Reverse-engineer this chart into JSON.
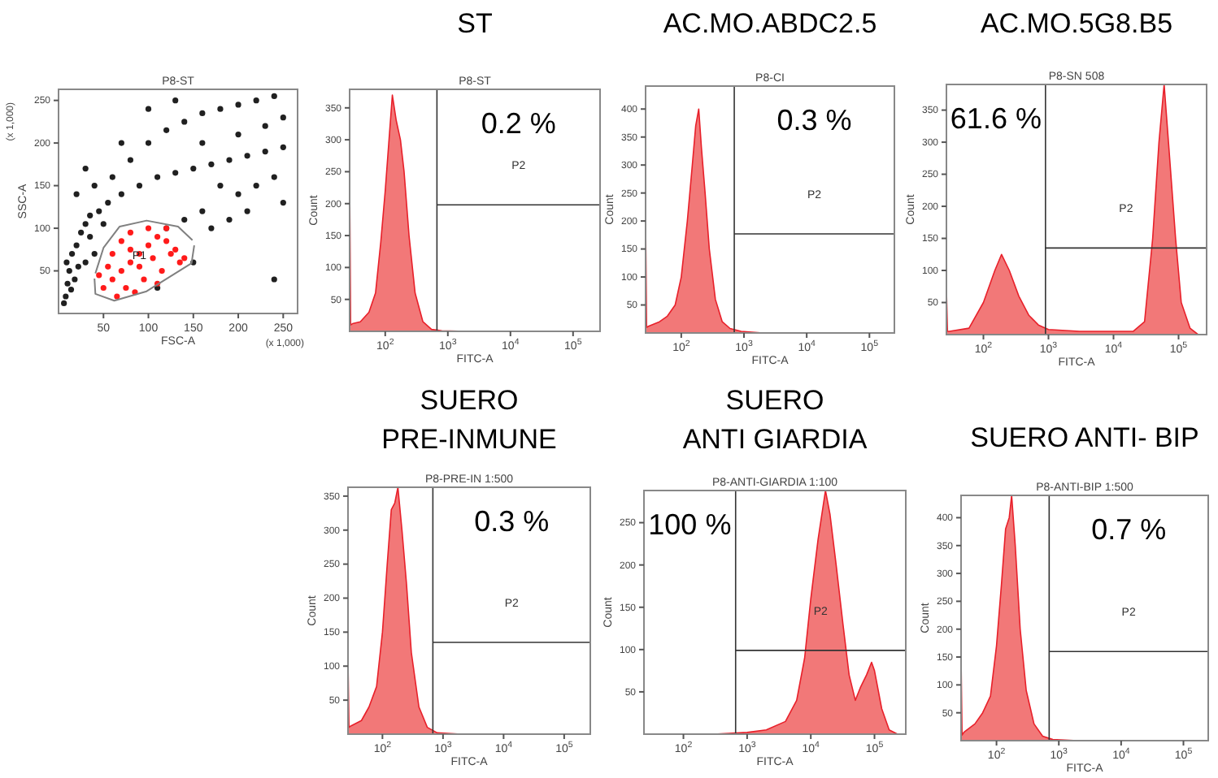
{
  "chart_data": [
    {
      "type": "scatter",
      "subtitle": "P8-ST",
      "xlabel": "FSC-A",
      "ylabel": "SSC-A",
      "xlim": [
        0,
        266
      ],
      "ylim": [
        0,
        263
      ],
      "xticks": [
        50,
        100,
        150,
        200,
        250
      ],
      "yticks": [
        50,
        100,
        150,
        200,
        250
      ],
      "marker": "circle",
      "annotations": [
        "(x 1,000)",
        "(x 1,000)",
        "P1"
      ],
      "series": [
        {
          "color": "#202020",
          "x": [
            8,
            10,
            12,
            9,
            15,
            20,
            25,
            30,
            18,
            22,
            14,
            6,
            35,
            45,
            55,
            70,
            90,
            110,
            130,
            150,
            170,
            190,
            210,
            230,
            250,
            60,
            80,
            100,
            120,
            140,
            160,
            180,
            200,
            220,
            240,
            40,
            70,
            100,
            130,
            160,
            200,
            230,
            250,
            180,
            200,
            220,
            240,
            160,
            140,
            170,
            190,
            210,
            250,
            35,
            30,
            40,
            50,
            120,
            110,
            240,
            150,
            20,
            30
          ],
          "values": [
            20,
            35,
            50,
            60,
            70,
            80,
            95,
            105,
            40,
            55,
            28,
            12,
            115,
            120,
            130,
            140,
            150,
            160,
            165,
            170,
            175,
            180,
            185,
            190,
            195,
            160,
            180,
            200,
            215,
            225,
            235,
            240,
            245,
            250,
            255,
            150,
            200,
            240,
            250,
            200,
            210,
            220,
            230,
            150,
            140,
            150,
            160,
            120,
            110,
            100,
            110,
            120,
            130,
            90,
            60,
            70,
            105,
            100,
            30,
            40,
            60,
            140,
            170
          ]
        },
        {
          "color": "#ff1a1a",
          "x": [
            50,
            60,
            70,
            80,
            90,
            100,
            110,
            120,
            130,
            140,
            60,
            70,
            80,
            100,
            120,
            55,
            75,
            95,
            115,
            135,
            65,
            85,
            90,
            105,
            125,
            45,
            110,
            80
          ],
          "values": [
            30,
            40,
            50,
            60,
            70,
            80,
            90,
            85,
            75,
            65,
            70,
            85,
            95,
            100,
            100,
            55,
            30,
            40,
            50,
            60,
            20,
            25,
            55,
            65,
            70,
            45,
            35,
            75
          ]
        },
        {
          "type": "line",
          "marker": "none",
          "color": "#808080",
          "x": [
            40,
            41,
            62,
            98,
            148,
            151
          ],
          "values": [
            41,
            23,
            15,
            26,
            59,
            80
          ]
        },
        {
          "type": "line",
          "marker": "none",
          "color": "#808080",
          "x": [
            41,
            50,
            68,
            98,
            133,
            149
          ],
          "values": [
            47,
            77,
            102,
            109,
            102,
            86
          ]
        }
      ]
    },
    {
      "type": "area",
      "title": "ST",
      "subtitle": "P8-ST",
      "xlabel": "FITC-A",
      "ylabel": "Count",
      "log": "x",
      "xlim": [
        27,
        270000
      ],
      "ylim": [
        0,
        379
      ],
      "xticks": [
        {
          "value": 100,
          "label": "10$^{2}$"
        },
        {
          "value": 1000,
          "label": "10$^{3}$"
        },
        {
          "value": 10000,
          "label": "10$^{4}$"
        },
        {
          "value": 100000,
          "label": "10$^{5}$"
        }
      ],
      "yticks": [
        50,
        100,
        150,
        200,
        250,
        300,
        350
      ],
      "annotations": [
        "0.2 %"
      ],
      "ref_lines": [
        {
          "axis": "x",
          "value": 670
        },
        {
          "axis": "y",
          "value": 198,
          "label": "P2"
        }
      ],
      "series": [
        {
          "color": "#f06060",
          "x": [
            27,
            28,
            30,
            40,
            55,
            70,
            85,
            100,
            115,
            130,
            150,
            175,
            200,
            240,
            300,
            400,
            550,
            800,
            2000,
            100000
          ],
          "values": [
            240,
            10,
            12,
            15,
            30,
            60,
            140,
            220,
            300,
            370,
            330,
            300,
            250,
            150,
            60,
            15,
            3,
            1,
            0,
            0
          ]
        }
      ]
    },
    {
      "type": "area",
      "title": "AC.MO.ABDC2.5",
      "subtitle": "P8-CI",
      "xlabel": "FITC-A",
      "ylabel": "Count",
      "log": "x",
      "xlim": [
        27,
        250000
      ],
      "ylim": [
        0,
        441
      ],
      "xticks": [
        {
          "value": 100,
          "label": "10$^{2}$"
        },
        {
          "value": 1000,
          "label": "10$^{3}$"
        },
        {
          "value": 10000,
          "label": "10$^{4}$"
        },
        {
          "value": 100000,
          "label": "10$^{5}$"
        }
      ],
      "yticks": [
        50,
        100,
        150,
        200,
        250,
        300,
        350,
        400
      ],
      "annotations": [
        "0.3 %"
      ],
      "ref_lines": [
        {
          "axis": "x",
          "value": 700
        },
        {
          "axis": "y",
          "value": 177,
          "label": "P2"
        }
      ],
      "series": [
        {
          "color": "#f06060",
          "x": [
            27,
            28,
            30,
            45,
            60,
            80,
            100,
            125,
            150,
            170,
            190,
            210,
            240,
            280,
            350,
            450,
            600,
            900,
            2000,
            100000
          ],
          "values": [
            200,
            10,
            12,
            20,
            30,
            50,
            100,
            200,
            300,
            370,
            400,
            330,
            250,
            150,
            60,
            20,
            8,
            3,
            0,
            0
          ]
        }
      ]
    },
    {
      "type": "area",
      "title": "AC.MO.5G8.B5",
      "subtitle": "P8-SN 508",
      "xlabel": "FITC-A",
      "ylabel": "Count",
      "log": "x",
      "xlim": [
        27,
        270000
      ],
      "ylim": [
        0,
        390
      ],
      "xticks": [
        {
          "value": 100,
          "label": "10$^{2}$"
        },
        {
          "value": 1000,
          "label": "10$^{3}$"
        },
        {
          "value": 10000,
          "label": "10$^{4}$"
        },
        {
          "value": 100000,
          "label": "10$^{5}$"
        }
      ],
      "yticks": [
        50,
        100,
        150,
        200,
        250,
        300,
        350
      ],
      "annotations": [
        "61.6 %"
      ],
      "ref_lines": [
        {
          "axis": "x",
          "value": 900
        },
        {
          "axis": "y",
          "value": 135,
          "label": "P2"
        }
      ],
      "series": [
        {
          "color": "#f06060",
          "x": [
            27,
            28,
            30,
            60,
            100,
            150,
            190,
            250,
            350,
            500,
            700,
            1000,
            3000,
            10000,
            20000,
            30000,
            40000,
            50000,
            60000,
            70000,
            90000,
            110000,
            150000,
            200000
          ],
          "values": [
            70,
            5,
            5,
            10,
            50,
            100,
            125,
            100,
            60,
            30,
            15,
            8,
            5,
            5,
            5,
            20,
            150,
            300,
            390,
            300,
            150,
            50,
            10,
            0
          ]
        }
      ]
    },
    {
      "type": "area",
      "title": "SUERO\nPRE-INMUNE",
      "subtitle": "P8-PRE-IN 1:500",
      "xlabel": "FITC-A",
      "ylabel": "Count",
      "log": "x",
      "xlim": [
        27,
        270000
      ],
      "ylim": [
        0,
        363
      ],
      "xticks": [
        {
          "value": 100,
          "label": "10$^{2}$"
        },
        {
          "value": 1000,
          "label": "10$^{3}$"
        },
        {
          "value": 10000,
          "label": "10$^{4}$"
        },
        {
          "value": 100000,
          "label": "10$^{5}$"
        }
      ],
      "yticks": [
        50,
        100,
        150,
        200,
        250,
        300,
        350
      ],
      "annotations": [
        "0.3 %"
      ],
      "ref_lines": [
        {
          "axis": "x",
          "value": 680
        },
        {
          "axis": "y",
          "value": 135,
          "label": "P2"
        }
      ],
      "series": [
        {
          "color": "#f06060",
          "x": [
            27,
            28,
            30,
            45,
            60,
            80,
            100,
            120,
            140,
            160,
            180,
            210,
            250,
            300,
            400,
            550,
            800,
            2000,
            100000
          ],
          "values": [
            110,
            10,
            12,
            20,
            40,
            70,
            150,
            250,
            330,
            340,
            363,
            300,
            220,
            120,
            40,
            10,
            2,
            0,
            0
          ]
        }
      ]
    },
    {
      "type": "area",
      "title": "SUERO\nANTI GIARDIA",
      "subtitle": "P8-ANTI-GIARDIA 1:100",
      "xlabel": "FITC-A",
      "ylabel": "Count",
      "log": "x",
      "xlim": [
        24,
        310000
      ],
      "ylim": [
        0,
        288
      ],
      "xticks": [
        {
          "value": 100,
          "label": "10$^{2}$"
        },
        {
          "value": 1000,
          "label": "10$^{3}$"
        },
        {
          "value": 10000,
          "label": "10$^{4}$"
        },
        {
          "value": 100000,
          "label": "10$^{5}$"
        }
      ],
      "yticks": [
        50,
        100,
        150,
        200,
        250
      ],
      "annotations": [
        "100 %"
      ],
      "ref_lines": [
        {
          "axis": "x",
          "value": 660
        },
        {
          "axis": "y",
          "value": 99,
          "label": "P2"
        }
      ],
      "series": [
        {
          "color": "#f06060",
          "x": [
            24,
            300,
            1000,
            2000,
            4000,
            6000,
            8000,
            10000,
            13000,
            17000,
            20000,
            25000,
            32000,
            40000,
            50000,
            60000,
            75000,
            90000,
            100000,
            130000,
            170000,
            230000
          ],
          "values": [
            0,
            0,
            2,
            5,
            15,
            40,
            90,
            160,
            230,
            288,
            260,
            200,
            130,
            70,
            40,
            55,
            70,
            85,
            75,
            30,
            5,
            0
          ]
        }
      ]
    },
    {
      "type": "area",
      "title": "SUERO ANTI- BIP",
      "subtitle": "P8-ANTI-BIP 1:500",
      "xlabel": "FITC-A",
      "ylabel": "Count",
      "log": "x",
      "xlim": [
        27,
        250000
      ],
      "ylim": [
        0,
        440
      ],
      "xticks": [
        {
          "value": 100,
          "label": "10$^{2}$"
        },
        {
          "value": 1000,
          "label": "10$^{3}$"
        },
        {
          "value": 10000,
          "label": "10$^{4}$"
        },
        {
          "value": 100000,
          "label": "10$^{5}$"
        }
      ],
      "yticks": [
        50,
        100,
        150,
        200,
        250,
        300,
        350,
        400
      ],
      "annotations": [
        "0.7 %"
      ],
      "ref_lines": [
        {
          "axis": "x",
          "value": 700
        },
        {
          "axis": "y",
          "value": 160,
          "label": "P2"
        }
      ],
      "series": [
        {
          "color": "#f06060",
          "x": [
            27,
            28,
            30,
            45,
            60,
            80,
            100,
            120,
            140,
            160,
            175,
            200,
            240,
            300,
            400,
            550,
            800,
            2000,
            100000
          ],
          "values": [
            150,
            10,
            15,
            30,
            50,
            80,
            170,
            280,
            380,
            400,
            440,
            350,
            200,
            90,
            30,
            8,
            2,
            0,
            0
          ]
        }
      ]
    }
  ]
}
